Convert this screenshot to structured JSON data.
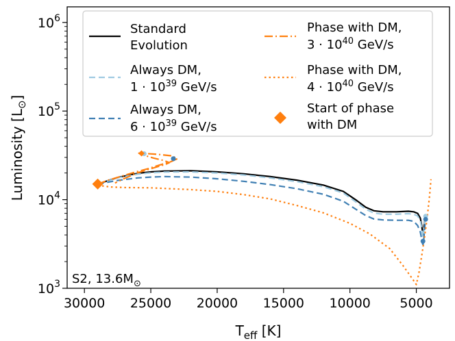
{
  "chart_data": {
    "type": "line",
    "panel_label": {
      "main": "S2, 13.6M",
      "sub": "⊙"
    },
    "xlabel": {
      "main": "T",
      "sub": "eff",
      "unit": " [K]"
    },
    "ylabel": {
      "main": "Luminosity [L",
      "sub": "⊙",
      "close": "]"
    },
    "x_scale": "linear",
    "x_inverted": true,
    "xlim": [
      31300,
      2500
    ],
    "xticks": [
      {
        "value": 30000,
        "label": "30000"
      },
      {
        "value": 25000,
        "label": "25000"
      },
      {
        "value": 20000,
        "label": "20000"
      },
      {
        "value": 15000,
        "label": "15000"
      },
      {
        "value": 10000,
        "label": "10000"
      },
      {
        "value": 5000,
        "label": "5000"
      }
    ],
    "y_scale": "log",
    "ylim": [
      1000,
      1500000
    ],
    "yticks": [
      {
        "value": 1000,
        "base": "10",
        "exp": "3"
      },
      {
        "value": 10000,
        "base": "10",
        "exp": "4"
      },
      {
        "value": 100000,
        "base": "10",
        "exp": "5"
      },
      {
        "value": 1000000,
        "base": "10",
        "exp": "6"
      }
    ],
    "series": [
      {
        "name": "std",
        "legend": [
          "Standard",
          "Evolution"
        ],
        "color": "#000000",
        "dash": "solid",
        "x": [
          29000,
          27500,
          26000,
          25000,
          24000,
          22000,
          20000,
          18000,
          16000,
          14000,
          12000,
          10500,
          9500,
          8800,
          8200,
          7500,
          6500,
          5600,
          5200,
          4900,
          4700,
          4600,
          4550,
          4500,
          4450,
          4400,
          4350,
          4300
        ],
        "y": [
          15000,
          17800,
          19800,
          20600,
          21000,
          21200,
          20600,
          19600,
          18200,
          16600,
          14600,
          12400,
          9800,
          8200,
          7500,
          7300,
          7300,
          7400,
          7300,
          7000,
          6200,
          5200,
          4500,
          4000,
          4400,
          5200,
          6000,
          6500
        ]
      },
      {
        "name": "dm1e39",
        "legend": [
          "Always DM,",
          "1 · 10",
          "39",
          " GeV/s"
        ],
        "color": "#9ecae1",
        "dash": "9,5",
        "x": [
          29000,
          27500,
          26000,
          25000,
          24000,
          22000,
          20000,
          18000,
          16000,
          14000,
          12000,
          10500,
          9500,
          8800,
          8200,
          7500,
          6500,
          5600,
          5200,
          4900,
          4700,
          4600,
          4550,
          4500,
          4450,
          4400,
          4350,
          4300
        ],
        "y": [
          15000,
          17600,
          19400,
          20100,
          20500,
          20600,
          20000,
          19000,
          17600,
          16000,
          14000,
          11900,
          9300,
          7800,
          7050,
          6850,
          6850,
          6950,
          6850,
          6550,
          5800,
          4850,
          4200,
          3800,
          4200,
          5000,
          5800,
          6300
        ]
      },
      {
        "name": "dm6e39",
        "legend": [
          "Always DM,",
          "6 · 10",
          "39",
          " GeV/s"
        ],
        "color": "#3f7fb3",
        "dash": "9,5",
        "x": [
          29000,
          27500,
          26000,
          25000,
          24000,
          22000,
          20000,
          18000,
          16000,
          14000,
          12000,
          10500,
          9500,
          8800,
          8200,
          7500,
          6500,
          5600,
          5200,
          4900,
          4700,
          4600,
          4550,
          4500,
          4450,
          4400,
          4350,
          4300
        ],
        "y": [
          15000,
          16500,
          17600,
          18000,
          18200,
          18000,
          17200,
          16100,
          14800,
          13300,
          11500,
          9600,
          7700,
          6600,
          6050,
          5900,
          5850,
          5850,
          5700,
          5100,
          4300,
          3600,
          3250,
          3100,
          3400,
          4200,
          5200,
          6000
        ]
      },
      {
        "name": "phase3e40",
        "legend": [
          "Phase with DM,",
          "3 · 10",
          "40",
          " GeV/s"
        ],
        "color": "#ff7f0e",
        "dash": "12,4,2,4",
        "x": [
          29000,
          28200,
          27200,
          26200,
          25200,
          24300,
          23500,
          23000,
          23400,
          24500,
          25400,
          25900,
          25600,
          24800,
          24000,
          23600,
          23900,
          24900,
          26000,
          27000,
          27700
        ],
        "y": [
          15000,
          16600,
          18400,
          20400,
          22400,
          24700,
          26800,
          29000,
          31200,
          32500,
          33200,
          33500,
          32000,
          29500,
          27600,
          26200,
          25000,
          22600,
          20100,
          17300,
          15400
        ]
      },
      {
        "name": "phase4e40",
        "legend": [
          "Phase with DM,",
          "4 · 10",
          "40",
          " GeV/s"
        ],
        "color": "#ff7f0e",
        "dash": "2.5,4",
        "x": [
          29000,
          28000,
          27000,
          25000,
          22000,
          20000,
          18000,
          16000,
          14000,
          12000,
          10000,
          8500,
          7000,
          6000,
          5300,
          5000,
          4800,
          4600,
          4400,
          4200,
          4000,
          3900
        ],
        "y": [
          14500,
          13900,
          13700,
          13600,
          13000,
          12400,
          11400,
          10200,
          8600,
          7100,
          5400,
          4100,
          2800,
          1800,
          1280,
          1100,
          1500,
          2300,
          3600,
          6000,
          11000,
          17000
        ]
      }
    ],
    "markers": {
      "legend": [
        "Start of phase",
        "with DM"
      ],
      "color": "#ff7f0e",
      "points": [
        {
          "x": 29000,
          "y": 15000,
          "size": "large"
        },
        {
          "x": 25700,
          "y": 33300,
          "size": "small"
        }
      ]
    },
    "dots": [
      {
        "x": 4300,
        "y": 6500,
        "color": "#9ecae1"
      },
      {
        "x": 4300,
        "y": 6000,
        "color": "#3f7fb3"
      },
      {
        "x": 4500,
        "y": 3400,
        "color": "#3f7fb3"
      },
      {
        "x": 25500,
        "y": 33000,
        "color": "#9ecae1"
      },
      {
        "x": 23300,
        "y": 29000,
        "color": "#3f7fb3"
      }
    ],
    "legend_placement": "top"
  }
}
